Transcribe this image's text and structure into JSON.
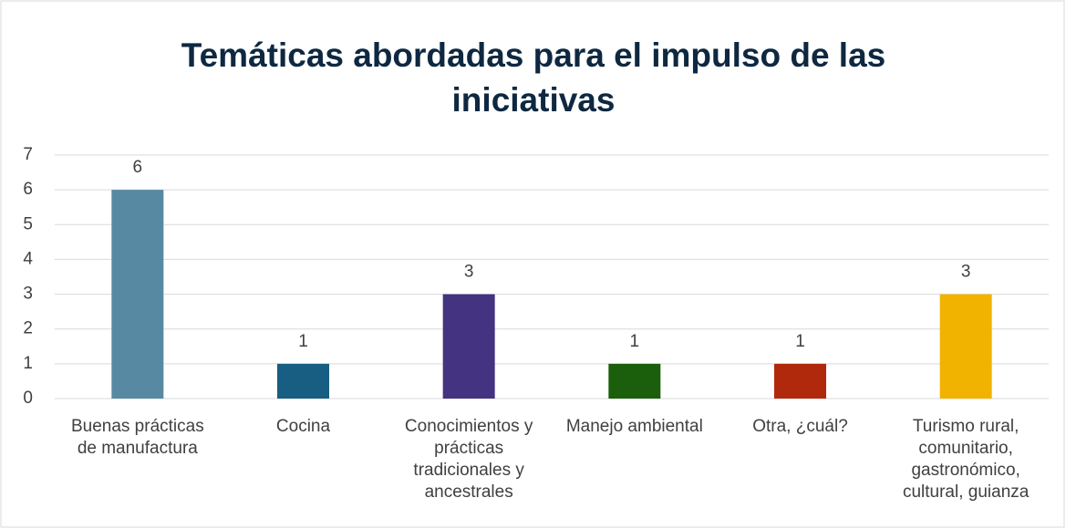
{
  "chart_data": {
    "type": "bar",
    "title": "Temáticas abordadas para el impulso de las iniciativas",
    "categories": [
      "Buenas prácticas de manufactura",
      "Cocina",
      "Conocimientos y prácticas tradicionales y ancestrales",
      "Manejo ambiental",
      "Otra, ¿cuál?",
      "Turismo rural, comunitario, gastronómico, cultural, guianza"
    ],
    "values": [
      6,
      1,
      3,
      1,
      1,
      3
    ],
    "colors": [
      "#5789a2",
      "#175e82",
      "#433380",
      "#1b5e0c",
      "#b1290c",
      "#f2b200"
    ],
    "ylim": [
      0,
      7
    ],
    "yticks": [
      0,
      1,
      2,
      3,
      4,
      5,
      6,
      7
    ],
    "grid": true
  }
}
